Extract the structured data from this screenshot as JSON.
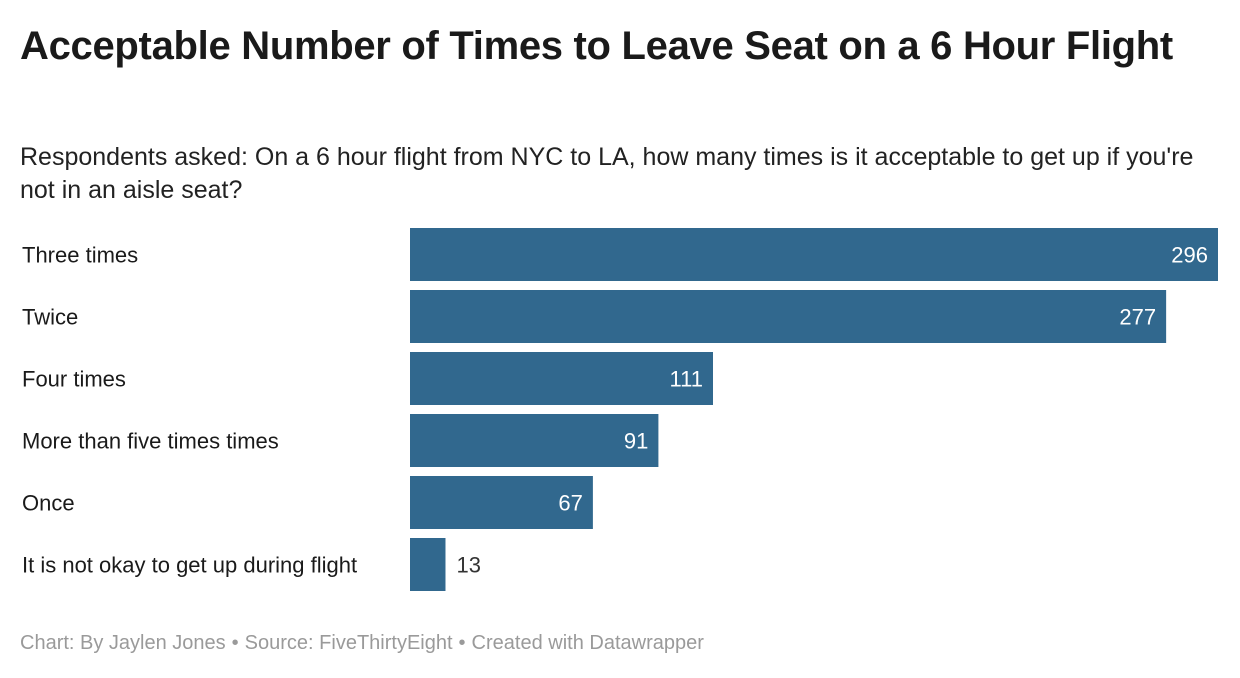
{
  "chart_data": {
    "type": "bar",
    "orientation": "horizontal",
    "title": "Acceptable Number of Times to Leave Seat on a 6 Hour Flight",
    "subtitle": "Respondents asked: On a 6 hour flight from NYC to LA, how many times is it acceptable to get up if you're not in an aisle seat?",
    "categories": [
      "Three times",
      "Twice",
      "Four times",
      "More than five times times",
      "Once",
      "It is not okay to get up during flight"
    ],
    "values": [
      296,
      277,
      111,
      91,
      67,
      13
    ],
    "xlim": [
      0,
      296
    ],
    "bar_color": "#31688e",
    "label_inside_color": "#ffffff",
    "label_outside_color": "#333333",
    "grid": false,
    "legend": "none"
  },
  "footer": {
    "chart_credit": "Chart: By Jaylen Jones",
    "source": "Source: FiveThirtyEight",
    "created_with": "Created with Datawrapper",
    "separator": "•"
  }
}
